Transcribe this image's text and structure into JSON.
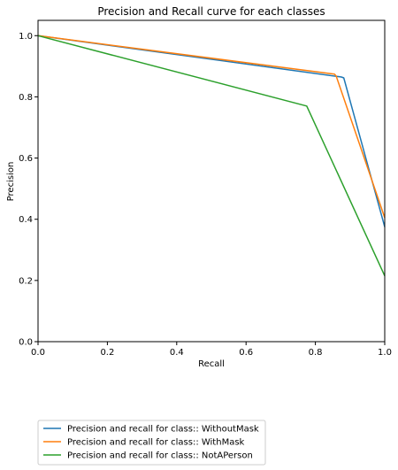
{
  "chart_data": {
    "type": "line",
    "title": "Precision and Recall curve for each classes",
    "xlabel": "Recall",
    "ylabel": "Precision",
    "xlim": [
      0,
      1
    ],
    "ylim": [
      0,
      1.05
    ],
    "xticks": [
      0.0,
      0.2,
      0.4,
      0.6,
      0.8,
      1.0
    ],
    "yticks": [
      0.0,
      0.2,
      0.4,
      0.6,
      0.8,
      1.0
    ],
    "xtick_labels": [
      "0.0",
      "0.2",
      "0.4",
      "0.6",
      "0.8",
      "1.0"
    ],
    "ytick_labels": [
      "0.0",
      "0.2",
      "0.4",
      "0.6",
      "0.8",
      "1.0"
    ],
    "grid": false,
    "legend_placement": "below-left",
    "series": [
      {
        "name": "Precision and recall for class:: WithoutMask",
        "color": "#1f77b4",
        "x": [
          0.0,
          0.875,
          0.882,
          1.0
        ],
        "y": [
          1.0,
          0.865,
          0.862,
          0.375
        ]
      },
      {
        "name": "Precision and recall for class:: WithMask",
        "color": "#ff7f0e",
        "x": [
          0.0,
          0.855,
          0.86,
          1.0
        ],
        "y": [
          1.0,
          0.874,
          0.868,
          0.405
        ]
      },
      {
        "name": "Precision and recall for class:: NotAPerson",
        "color": "#2ca02c",
        "x": [
          0.0,
          0.775,
          1.0
        ],
        "y": [
          1.0,
          0.77,
          0.215
        ]
      }
    ]
  }
}
